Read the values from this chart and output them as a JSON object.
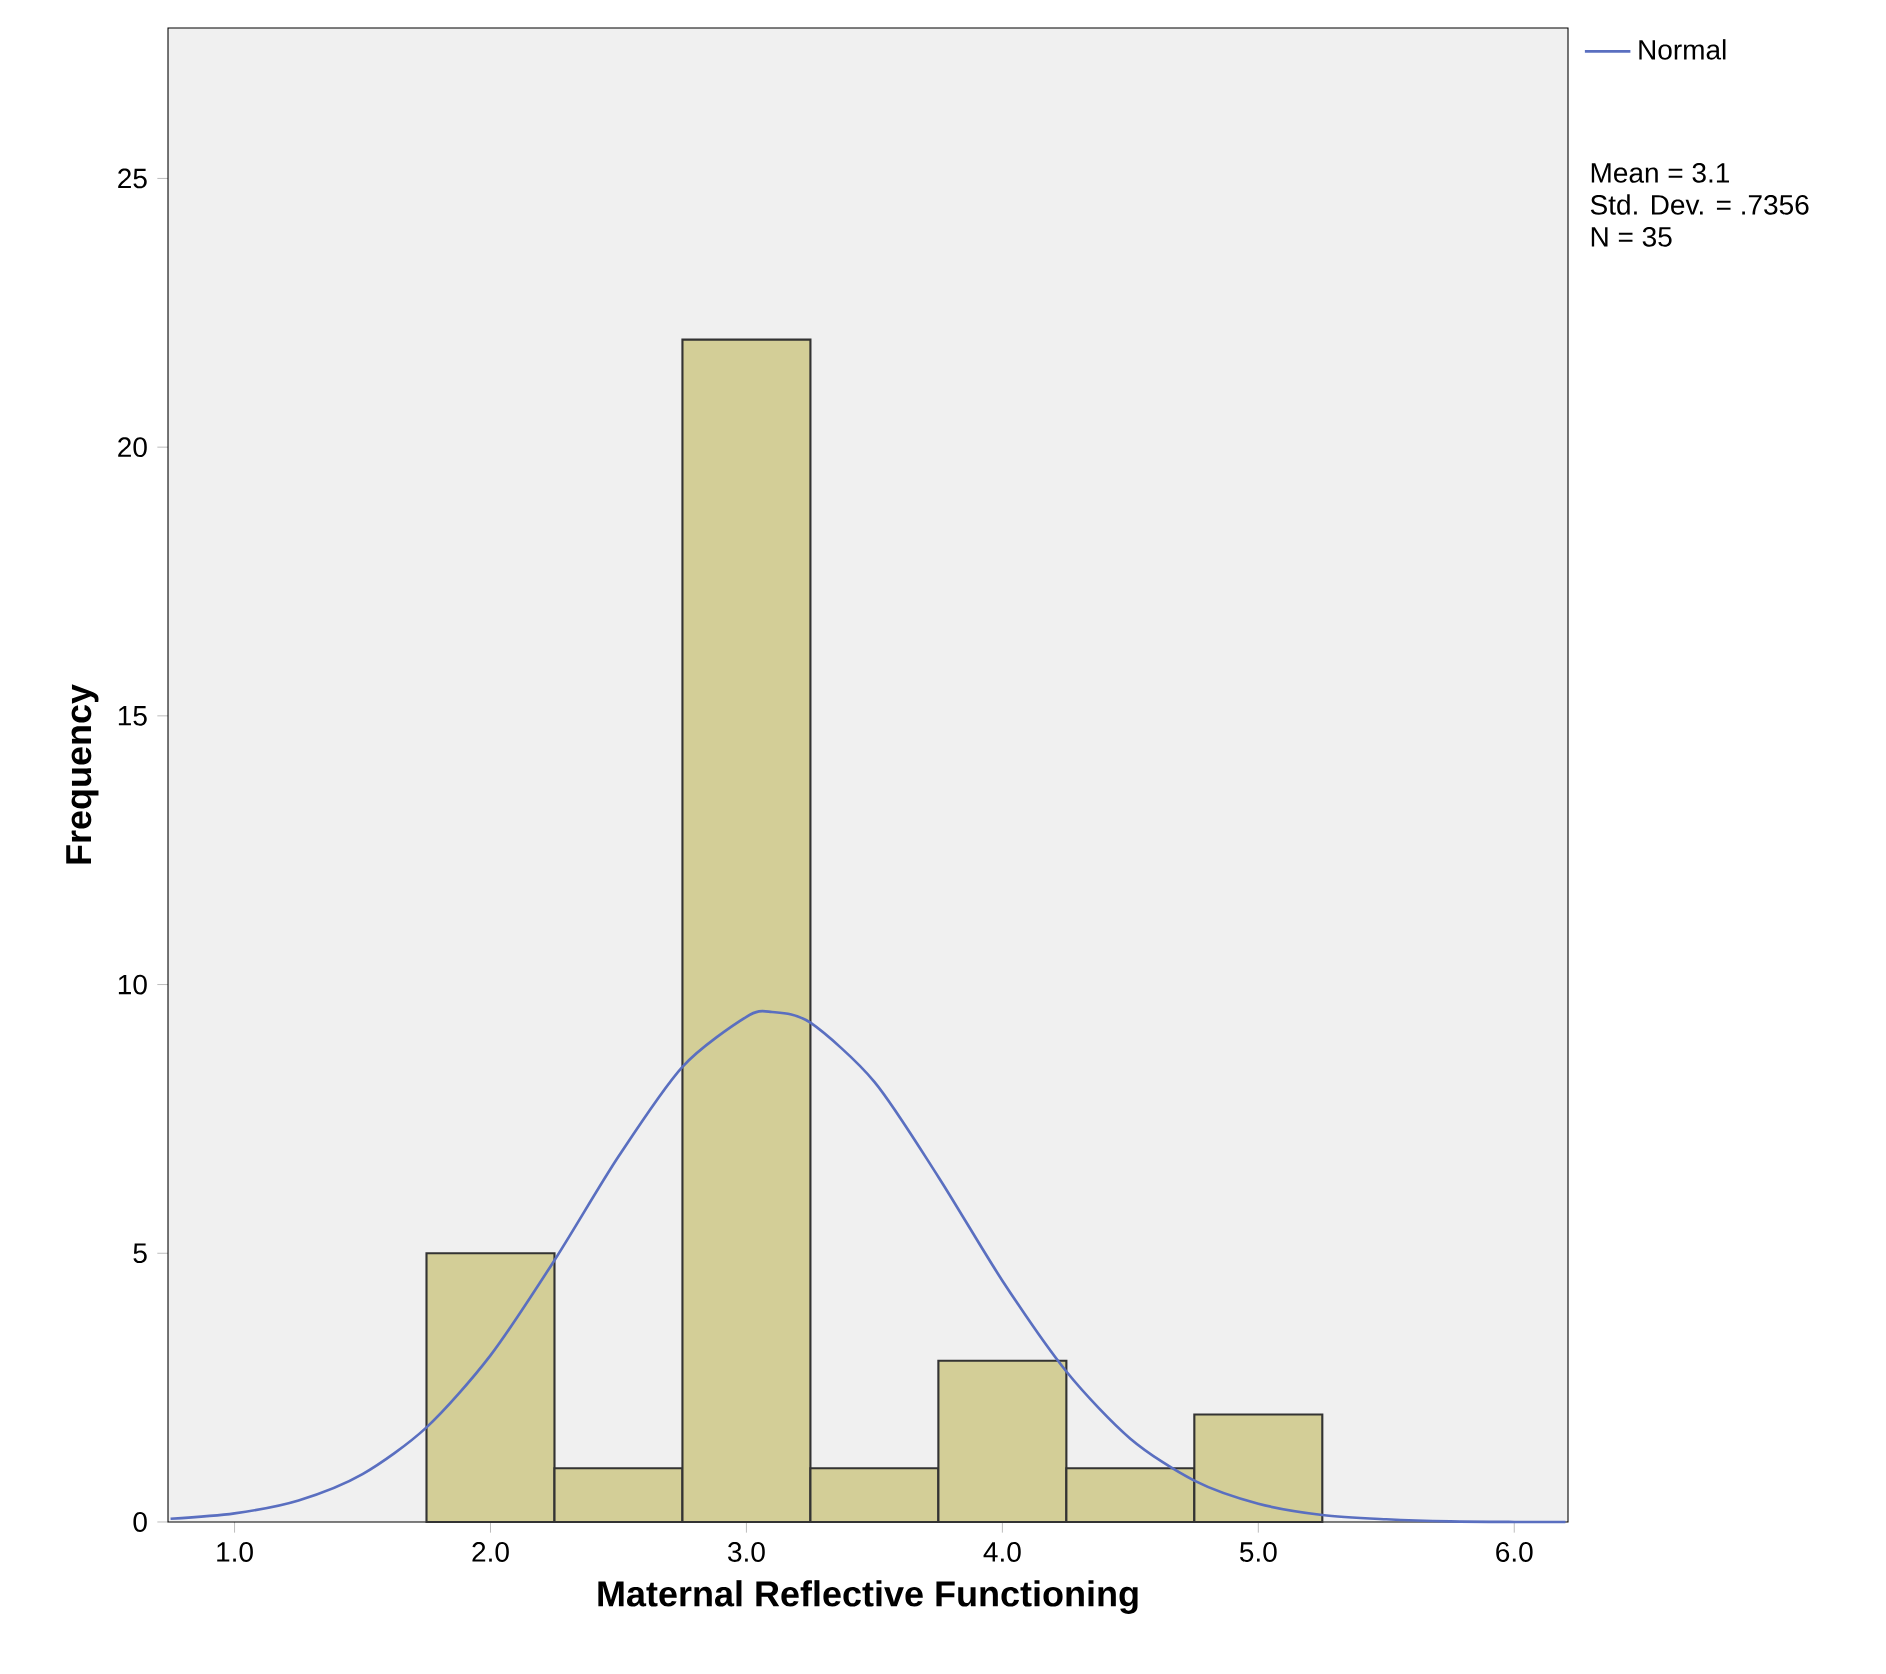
{
  "chart_data": {
    "type": "histogram",
    "xlabel": "Maternal Reflective Functioning",
    "ylabel": "Frequency",
    "bins": [
      1.75,
      2.25,
      2.75,
      3.25,
      3.75,
      4.25,
      4.75,
      5.25
    ],
    "values": [
      5,
      1,
      22,
      1,
      3,
      1,
      2
    ],
    "color": "#d3ce97",
    "series": [
      {
        "type": "line",
        "name": "Normal",
        "color": "#5a6fc0",
        "x": [
          0.75,
          1.0,
          1.25,
          1.5,
          1.75,
          2.0,
          2.25,
          2.5,
          2.75,
          3.0,
          3.1,
          3.25,
          3.5,
          3.75,
          4.0,
          4.25,
          4.5,
          4.75,
          5.0,
          5.25,
          5.5,
          5.75,
          6.0,
          6.2
        ],
        "values": [
          0.06,
          0.16,
          0.4,
          0.89,
          1.76,
          3.1,
          4.87,
          6.8,
          8.47,
          9.4,
          9.49,
          9.29,
          8.19,
          6.42,
          4.49,
          2.8,
          1.55,
          0.77,
          0.34,
          0.13,
          0.05,
          0.01,
          0.0,
          0.0
        ]
      }
    ],
    "xlim": [
      0.74,
      6.21
    ],
    "ylim": [
      0,
      27.8
    ],
    "xticks": [
      {
        "value": 1,
        "label": "1.0"
      },
      {
        "value": 2,
        "label": "2.0"
      },
      {
        "value": 3,
        "label": "3.0"
      },
      {
        "value": 4,
        "label": "4.0"
      },
      {
        "value": 5,
        "label": "5.0"
      },
      {
        "value": 6,
        "label": "6.0"
      }
    ],
    "yticks": [
      0,
      5,
      10,
      15,
      20,
      25
    ],
    "legend": "right",
    "marker": "none",
    "annotations": [
      "Mean = 3.1",
      "Std. Dev. = .7356",
      "N = 35"
    ]
  }
}
